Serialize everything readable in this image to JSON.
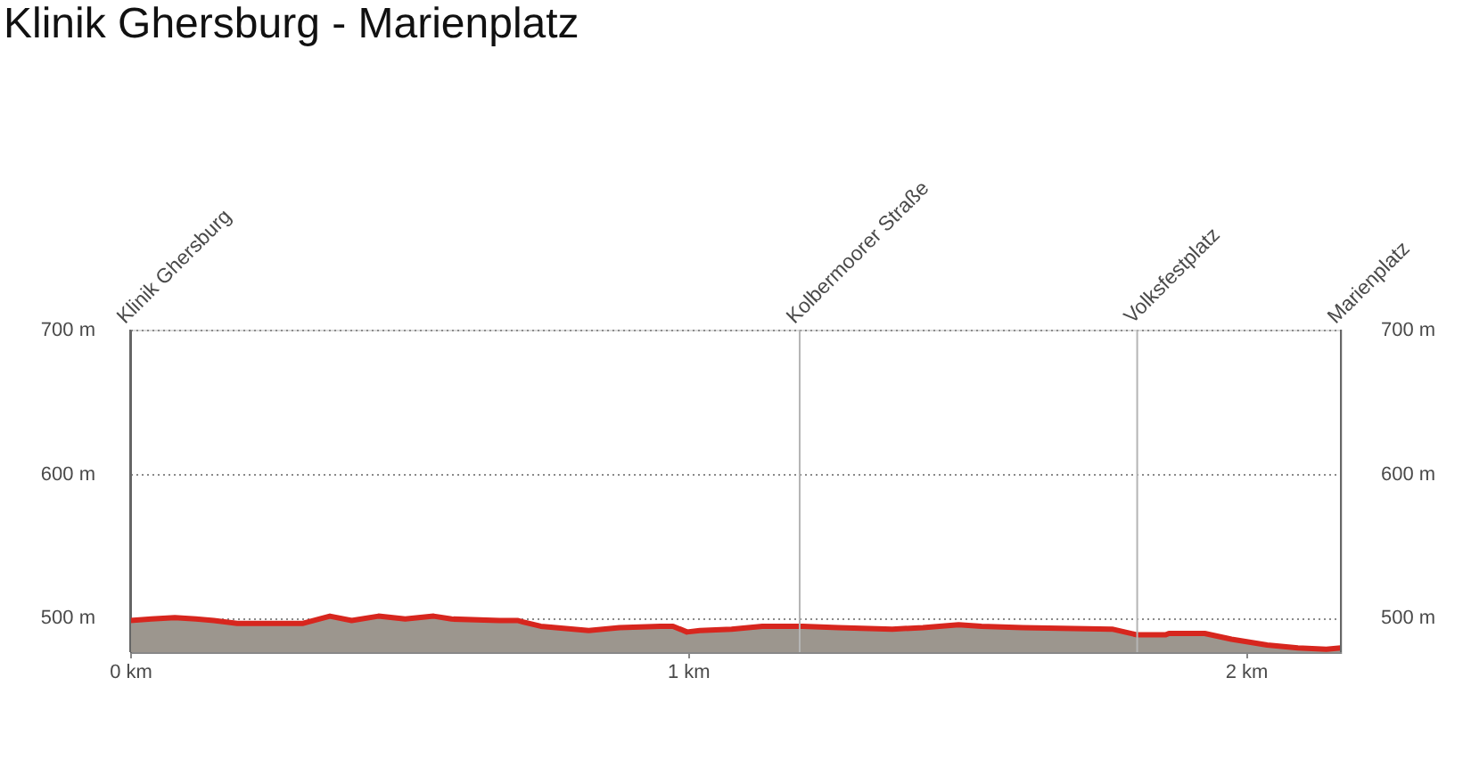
{
  "chart_data": {
    "type": "area",
    "title": "Klinik Ghersburg - Marienplatz",
    "x": [
      0,
      0.038,
      0.08,
      0.118,
      0.15,
      0.192,
      0.31,
      0.358,
      0.397,
      0.445,
      0.493,
      0.544,
      0.576,
      0.662,
      0.694,
      0.704,
      0.736,
      0.822,
      0.877,
      0.95,
      0.973,
      0.998,
      1.021,
      1.078,
      1.133,
      1.206,
      1.27,
      1.366,
      1.421,
      1.485,
      1.526,
      1.6,
      1.76,
      1.805,
      1.856,
      1.862,
      1.926,
      1.974,
      2.038,
      2.093,
      2.144,
      2.17
    ],
    "series": [
      {
        "color": "#d7261e",
        "values": [
          498,
          499,
          500,
          499,
          498,
          496,
          496,
          501,
          498,
          501,
          499,
          501,
          499,
          498,
          498,
          497,
          494,
          491,
          493,
          494,
          494,
          490,
          491,
          492,
          494,
          494,
          493,
          492,
          493,
          495,
          494,
          493,
          492,
          488,
          488,
          489,
          489,
          485,
          481,
          479,
          478,
          479
        ]
      }
    ],
    "xlim": [
      0,
      2.17
    ],
    "xticks": [
      {
        "value": 0,
        "label": "0 km"
      },
      {
        "value": 1,
        "label": "1 km"
      },
      {
        "value": 2,
        "label": "2 km"
      }
    ],
    "ylim": [
      476,
      700
    ],
    "yticks": [
      {
        "value": 500,
        "label": "500 m"
      },
      {
        "value": 600,
        "label": "600 m"
      },
      {
        "value": 700,
        "label": "700 m"
      }
    ],
    "y2lim": [
      476,
      700
    ],
    "y2ticks": [
      {
        "value": 500,
        "label": "500 m"
      },
      {
        "value": 600,
        "label": "600 m"
      },
      {
        "value": 700,
        "label": "700 m"
      }
    ],
    "ref_lines": [
      {
        "axis": "x",
        "value": 0,
        "label": "Klinik Ghersburg",
        "color": "#666666"
      },
      {
        "axis": "x",
        "value": 1.2,
        "label": "Kolbermoorer Straße",
        "color": "#b5b5b5"
      },
      {
        "axis": "x",
        "value": 1.805,
        "label": "Volksfestplatz",
        "color": "#b5b5b5"
      },
      {
        "axis": "x",
        "value": 2.17,
        "label": "Marienplatz",
        "color": "#666666"
      }
    ],
    "grid": "y"
  }
}
